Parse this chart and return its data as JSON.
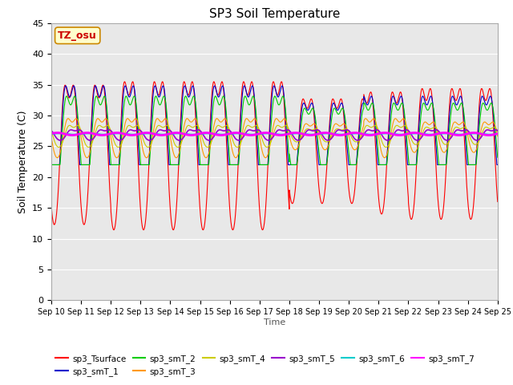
{
  "title": "SP3 Soil Temperature",
  "xlabel": "Time",
  "ylabel": "Soil Temperature (C)",
  "annotation": "TZ_osu",
  "ylim": [
    0,
    45
  ],
  "x_tick_labels": [
    "Sep 10",
    "Sep 11",
    "Sep 12",
    "Sep 13",
    "Sep 14",
    "Sep 15",
    "Sep 16",
    "Sep 17",
    "Sep 18",
    "Sep 19",
    "Sep 20",
    "Sep 21",
    "Sep 22",
    "Sep 23",
    "Sep 24",
    "Sep 25"
  ],
  "series_colors": {
    "sp3_Tsurface": "#ff0000",
    "sp3_smT_1": "#0000cc",
    "sp3_smT_2": "#00cc00",
    "sp3_smT_3": "#ff9900",
    "sp3_smT_4": "#cccc00",
    "sp3_smT_5": "#9900cc",
    "sp3_smT_6": "#00cccc",
    "sp3_smT_7": "#ff00ff"
  },
  "fig_bg": "#ffffff",
  "plot_bg": "#e8e8e8"
}
